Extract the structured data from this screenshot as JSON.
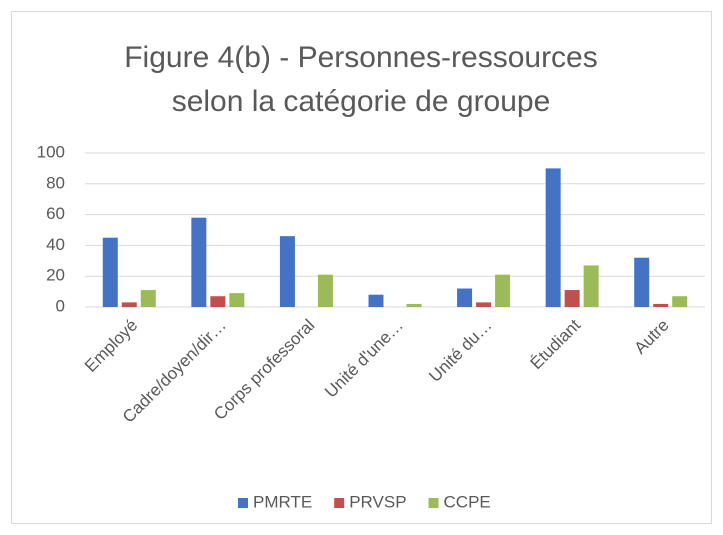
{
  "chart_data": {
    "type": "bar",
    "title": "Figure 4(b) - Personnes-ressources selon la catégorie de groupe",
    "categories": [
      "Employé",
      "Cadre/doyen/dir…",
      "Corps professoral",
      "Unité d'une…",
      "Unité du…",
      "Étudiant",
      "Autre"
    ],
    "series": [
      {
        "name": "PMRTE",
        "color": "#4472c4",
        "values": [
          45,
          58,
          46,
          8,
          12,
          90,
          32
        ]
      },
      {
        "name": "PRVSP",
        "color": "#c0504d",
        "values": [
          3,
          7,
          0,
          0,
          3,
          11,
          2
        ]
      },
      {
        "name": "CCPE",
        "color": "#9bbb59",
        "values": [
          11,
          9,
          21,
          2,
          21,
          27,
          7
        ]
      }
    ],
    "ylim": [
      0,
      100
    ],
    "yticks": [
      0,
      20,
      40,
      60,
      80,
      100
    ],
    "grid": true,
    "legend": "bottom"
  }
}
